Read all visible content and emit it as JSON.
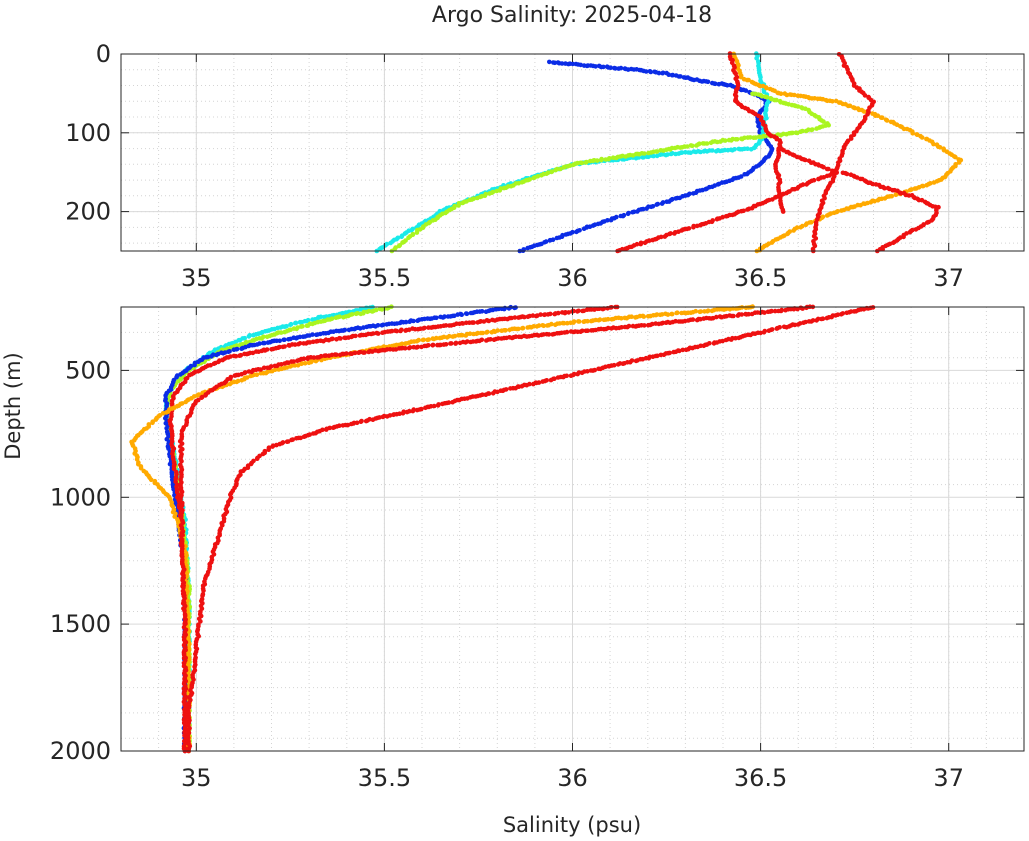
{
  "chart_data": [
    {
      "type": "scatter",
      "panel": "upper",
      "title": "Argo Salinity: 2025-04-18",
      "xlabel": "",
      "ylabel": "",
      "xlim": [
        34.8,
        37.2
      ],
      "ylim": [
        0,
        250
      ],
      "y_reversed": true,
      "xticks": [
        "35",
        "35.5",
        "36",
        "36.5",
        "37"
      ],
      "yticks": [
        "0",
        "100",
        "200"
      ],
      "grid": true,
      "minor_grid": true,
      "series": [
        {
          "color": "#0b2ce6",
          "x": [
            35.94,
            36.05,
            36.17,
            36.25,
            36.3,
            36.35,
            36.42,
            36.48,
            36.52,
            36.49,
            36.5,
            36.53,
            36.52,
            36.5,
            36.45,
            36.3,
            36.1,
            35.95,
            35.86
          ],
          "y": [
            10,
            15,
            20,
            25,
            30,
            35,
            40,
            50,
            60,
            80,
            100,
            120,
            130,
            140,
            155,
            180,
            210,
            235,
            250
          ]
        },
        {
          "color": "#1aeaea",
          "x": [
            36.49,
            36.5,
            36.52,
            36.51,
            36.5,
            36.48,
            36.3,
            36.0,
            35.8,
            35.65,
            35.55,
            35.48
          ],
          "y": [
            0,
            30,
            60,
            90,
            110,
            120,
            125,
            140,
            170,
            200,
            230,
            250
          ]
        },
        {
          "color": "#aaf520",
          "x": [
            36.48,
            36.55,
            36.62,
            36.68,
            36.6,
            36.4,
            36.2,
            36.0,
            35.85,
            35.7,
            35.6,
            35.52
          ],
          "y": [
            50,
            60,
            70,
            90,
            100,
            110,
            125,
            140,
            165,
            190,
            220,
            250
          ]
        },
        {
          "color": "#ffaa00",
          "x": [
            36.43,
            36.45,
            36.55,
            36.7,
            36.82,
            36.95,
            37.03,
            36.98,
            36.85,
            36.7,
            36.58,
            36.49
          ],
          "y": [
            0,
            30,
            50,
            60,
            80,
            110,
            135,
            160,
            180,
            200,
            225,
            250
          ]
        },
        {
          "color": "#ee1111",
          "x": [
            36.42,
            36.43,
            36.44,
            36.43,
            36.5,
            36.52,
            36.55,
            36.55,
            36.54,
            36.55,
            36.55,
            36.56
          ],
          "y": [
            0,
            20,
            40,
            60,
            80,
            100,
            110,
            120,
            140,
            160,
            180,
            200
          ]
        },
        {
          "color": "#ee1111",
          "x": [
            36.71,
            36.73,
            36.75,
            36.8,
            36.78,
            36.75,
            36.72,
            36.7,
            36.67,
            36.65,
            36.64
          ],
          "y": [
            0,
            20,
            40,
            60,
            80,
            100,
            120,
            150,
            180,
            210,
            250
          ]
        },
        {
          "color": "#ee1111",
          "x": [
            36.55,
            36.62,
            36.7,
            36.62,
            36.55,
            36.45,
            36.35,
            36.25,
            36.12
          ],
          "y": [
            120,
            135,
            150,
            165,
            180,
            200,
            215,
            230,
            250
          ]
        },
        {
          "color": "#ee1111",
          "x": [
            36.72,
            36.8,
            36.9,
            36.97,
            36.96,
            36.9,
            36.85,
            36.81
          ],
          "y": [
            150,
            165,
            180,
            195,
            210,
            225,
            240,
            250
          ]
        }
      ]
    },
    {
      "type": "scatter",
      "panel": "lower",
      "title": "",
      "xlabel": "Salinity (psu)",
      "ylabel": "Depth (m)",
      "xlim": [
        34.8,
        37.2
      ],
      "ylim": [
        250,
        2000
      ],
      "y_reversed": true,
      "xticks": [
        "35",
        "35.5",
        "36",
        "36.5",
        "37"
      ],
      "yticks": [
        "500",
        "1000",
        "1500",
        "2000"
      ],
      "grid": true,
      "minor_grid": true,
      "series": [
        {
          "color": "#1aeaea",
          "x": [
            35.47,
            35.3,
            35.15,
            35.05,
            34.97,
            34.93,
            34.92,
            34.93,
            34.95,
            34.97,
            34.98,
            34.98,
            34.98
          ],
          "y": [
            250,
            300,
            360,
            420,
            500,
            580,
            650,
            750,
            900,
            1100,
            1400,
            1700,
            2000
          ]
        },
        {
          "color": "#aaf520",
          "x": [
            35.52,
            35.35,
            35.2,
            35.07,
            34.98,
            34.93,
            34.92,
            34.94,
            34.96,
            34.98,
            34.98,
            34.98
          ],
          "y": [
            250,
            300,
            360,
            420,
            500,
            580,
            680,
            850,
            1050,
            1350,
            1700,
            2000
          ]
        },
        {
          "color": "#0b2ce6",
          "x": [
            35.85,
            35.6,
            35.35,
            35.15,
            35.02,
            34.95,
            34.92,
            34.92,
            34.93,
            34.95,
            34.97,
            34.97,
            34.97
          ],
          "y": [
            250,
            300,
            350,
            400,
            450,
            520,
            600,
            700,
            850,
            1050,
            1300,
            1650,
            2000
          ]
        },
        {
          "color": "#ee1111",
          "x": [
            36.12,
            35.8,
            35.5,
            35.25,
            35.08,
            34.98,
            34.94,
            34.93,
            34.94,
            34.96,
            34.97,
            34.97
          ],
          "y": [
            250,
            300,
            350,
            400,
            450,
            520,
            600,
            700,
            850,
            1100,
            1500,
            2000
          ]
        },
        {
          "color": "#ffaa00",
          "x": [
            36.48,
            36.0,
            35.6,
            35.35,
            35.15,
            35.0,
            34.9,
            34.83,
            34.85,
            34.93,
            34.97,
            34.98,
            34.98
          ],
          "y": [
            250,
            310,
            380,
            450,
            520,
            600,
            680,
            780,
            880,
            1000,
            1200,
            1600,
            2000
          ]
        },
        {
          "color": "#ee1111",
          "x": [
            36.8,
            36.5,
            36.2,
            35.9,
            35.6,
            35.35,
            35.2,
            35.12,
            35.09,
            35.06,
            35.02,
            35.0,
            34.98,
            34.98
          ],
          "y": [
            250,
            350,
            450,
            550,
            650,
            730,
            800,
            900,
            1000,
            1150,
            1350,
            1600,
            1850,
            2000
          ]
        },
        {
          "color": "#ee1111",
          "x": [
            36.64,
            36.2,
            35.7,
            35.3,
            35.1,
            35.0,
            34.96,
            34.96,
            34.97,
            34.97
          ],
          "y": [
            250,
            320,
            390,
            450,
            520,
            620,
            750,
            1000,
            1500,
            2000
          ]
        }
      ]
    }
  ]
}
